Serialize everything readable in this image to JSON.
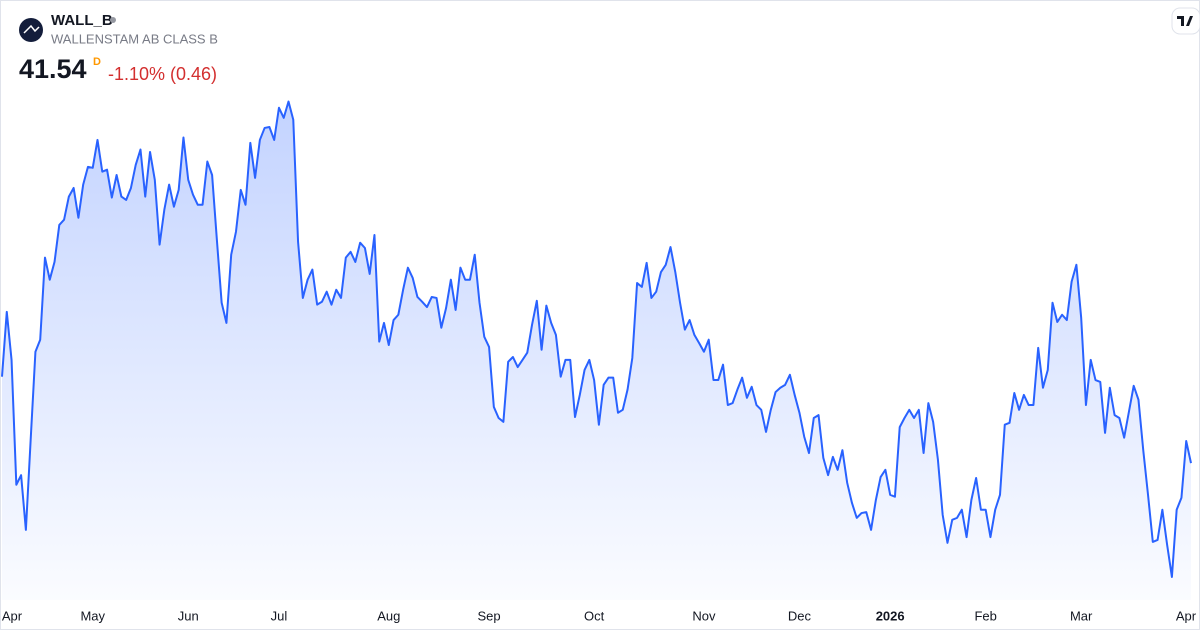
{
  "header": {
    "symbol": "WALL_B",
    "name": "WALLENSTAM AB CLASS B",
    "price": "41.54",
    "interval": "D",
    "change": "-1.10% (0.46)"
  },
  "chart_data": {
    "type": "area",
    "color": "#2962ff",
    "values": [
      43.34,
      44.69,
      43.69,
      41.09,
      41.29,
      40.15,
      42.02,
      43.86,
      44.11,
      45.82,
      45.36,
      45.73,
      46.5,
      46.61,
      47.09,
      47.27,
      46.65,
      47.34,
      47.71,
      47.69,
      48.27,
      47.61,
      47.65,
      47.07,
      47.54,
      47.09,
      47.02,
      47.27,
      47.75,
      48.07,
      47.09,
      48.02,
      47.44,
      46.09,
      46.82,
      47.34,
      46.88,
      47.23,
      48.32,
      47.44,
      47.13,
      46.92,
      46.92,
      47.82,
      47.54,
      46.19,
      44.88,
      44.46,
      45.88,
      46.36,
      47.23,
      46.92,
      48.21,
      47.48,
      48.27,
      48.52,
      48.54,
      48.27,
      48.94,
      48.73,
      49.07,
      48.69,
      46.15,
      44.98,
      45.36,
      45.57,
      44.84,
      44.9,
      45.11,
      44.84,
      45.15,
      44.98,
      45.82,
      45.94,
      45.73,
      46.13,
      46.02,
      45.48,
      46.29,
      44.07,
      44.46,
      44.0,
      44.52,
      44.63,
      45.15,
      45.61,
      45.4,
      45.0,
      44.9,
      44.79,
      45.0,
      44.98,
      44.36,
      44.77,
      45.36,
      44.73,
      45.61,
      45.36,
      45.36,
      45.88,
      44.88,
      44.17,
      43.96,
      42.71,
      42.48,
      42.4,
      43.65,
      43.75,
      43.54,
      43.69,
      43.84,
      44.42,
      44.92,
      43.9,
      44.82,
      44.46,
      44.21,
      43.34,
      43.69,
      43.69,
      42.5,
      42.96,
      43.48,
      43.69,
      43.27,
      42.34,
      43.17,
      43.32,
      43.32,
      42.59,
      42.65,
      43.07,
      43.73,
      45.29,
      45.21,
      45.71,
      44.98,
      45.11,
      45.52,
      45.67,
      46.04,
      45.52,
      44.88,
      44.32,
      44.52,
      44.21,
      44.04,
      43.86,
      44.11,
      43.27,
      43.27,
      43.59,
      42.75,
      42.79,
      43.07,
      43.32,
      42.9,
      43.13,
      42.75,
      42.65,
      42.19,
      42.65,
      43.02,
      43.11,
      43.17,
      43.38,
      42.96,
      42.59,
      42.09,
      41.75,
      42.48,
      42.54,
      41.65,
      41.29,
      41.67,
      41.4,
      41.81,
      41.13,
      40.71,
      40.4,
      40.5,
      40.52,
      40.15,
      40.77,
      41.25,
      41.4,
      40.88,
      40.84,
      42.29,
      42.48,
      42.65,
      42.48,
      42.65,
      41.75,
      42.79,
      42.4,
      41.61,
      40.46,
      39.88,
      40.36,
      40.4,
      40.57,
      40.0,
      40.77,
      41.23,
      40.57,
      40.57,
      40.0,
      40.57,
      40.88,
      42.34,
      42.38,
      43.0,
      42.65,
      42.96,
      42.75,
      42.75,
      43.94,
      43.11,
      43.48,
      44.88,
      44.48,
      44.63,
      44.52,
      45.32,
      45.67,
      44.57,
      42.75,
      43.69,
      43.27,
      43.23,
      42.17,
      43.11,
      42.54,
      42.48,
      42.07,
      42.61,
      43.15,
      42.86,
      41.81,
      40.88,
      39.9,
      39.94,
      40.57,
      39.84,
      39.17,
      40.57,
      40.82,
      42.0,
      41.54
    ],
    "xlim": [
      0,
      249
    ],
    "ylim": [
      38.69,
      49.31
    ],
    "xticks": [
      {
        "value": 2,
        "label": "Apr"
      },
      {
        "value": 19,
        "label": "May"
      },
      {
        "value": 39,
        "label": "Jun"
      },
      {
        "value": 58,
        "label": "Jul"
      },
      {
        "value": 81,
        "label": "Aug"
      },
      {
        "value": 102,
        "label": "Sep"
      },
      {
        "value": 124,
        "label": "Oct"
      },
      {
        "value": 147,
        "label": "Nov"
      },
      {
        "value": 167,
        "label": "Dec"
      },
      {
        "value": 186,
        "label": "2026"
      },
      {
        "value": 206,
        "label": "Feb"
      },
      {
        "value": 226,
        "label": "Mar"
      },
      {
        "value": 248,
        "label": "Apr"
      }
    ]
  }
}
